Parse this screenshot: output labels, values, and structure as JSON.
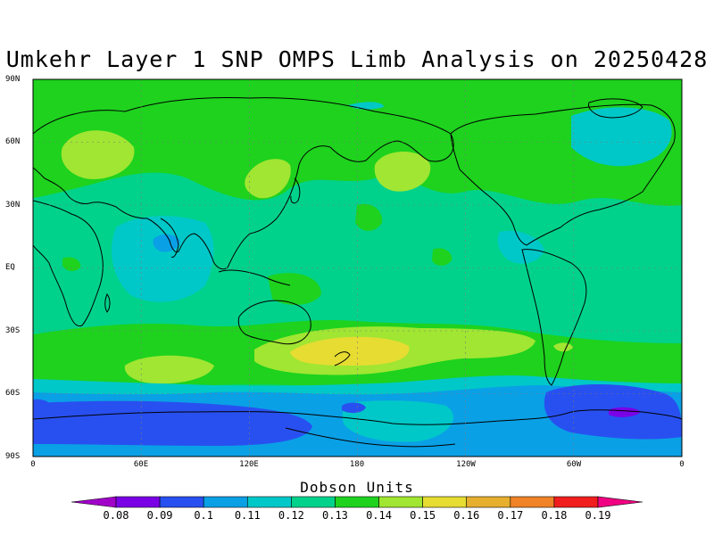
{
  "title": "Umkehr Layer 1 SNP OMPS Limb Analysis on 20250428",
  "units_label": "Dobson Units",
  "lat_labels": [
    "90N",
    "60N",
    "30N",
    "EQ",
    "30S",
    "60S",
    "90S"
  ],
  "lon_labels": [
    "0",
    "60E",
    "120E",
    "180",
    "120W",
    "60W",
    "0"
  ],
  "colorbar": {
    "levels": [
      "0.08",
      "0.09",
      "0.1",
      "0.11",
      "0.12",
      "0.13",
      "0.14",
      "0.15",
      "0.16",
      "0.17",
      "0.18",
      "0.19"
    ],
    "colors": [
      "#a000c8",
      "#7a00e6",
      "#2850f0",
      "#0aa0e6",
      "#00c8c8",
      "#00d28c",
      "#1ed21e",
      "#a0e632",
      "#e6dc32",
      "#e6af2d",
      "#f08228",
      "#f01e1e",
      "#f00082"
    ]
  },
  "colors": {
    "ocean_default": "#00d28c",
    "land_outline": "#000000"
  }
}
